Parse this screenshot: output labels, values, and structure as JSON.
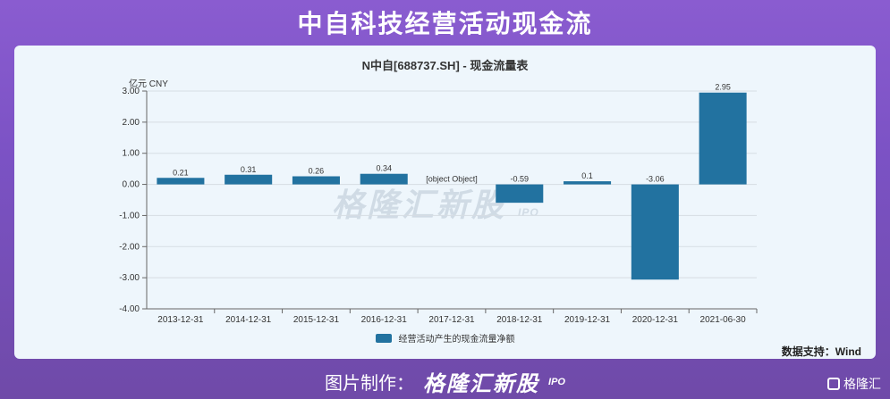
{
  "header": {
    "title": "中自科技经营活动现金流"
  },
  "chart_data": {
    "type": "bar",
    "title": "N中自[688737.SH] - 现金流量表",
    "unit_label": "亿元  CNY",
    "categories": [
      "2013-12-31",
      "2014-12-31",
      "2015-12-31",
      "2016-12-31",
      "2017-12-31",
      "2018-12-31",
      "2019-12-31",
      "2020-12-31",
      "2021-06-30"
    ],
    "series": [
      {
        "name": "经营活动产生的现金流量净额",
        "values": [
          0.21,
          0.31,
          0.26,
          0.34,
          null,
          -0.59,
          0.1,
          -3.06,
          2.95
        ]
      }
    ],
    "data_labels": [
      "0.21",
      "0.31",
      "0.26",
      "0.34",
      "[object Object]",
      "-0.59",
      "0.1",
      "-3.06",
      "2.95"
    ],
    "ylim": [
      -4,
      3
    ],
    "yticks": [
      "3.00",
      "2.00",
      "1.00",
      "0.00",
      "-1.00",
      "-2.00",
      "-3.00",
      "-4.00"
    ],
    "grid": true,
    "legend_position": "bottom",
    "bar_color": "#2272a0"
  },
  "source_note": "数据支持：Wind",
  "watermark": {
    "brand": "格隆汇新股",
    "sub": "IPO"
  },
  "footer": {
    "label": "图片制作：",
    "brand": "格隆汇新股",
    "sub": "IPO"
  },
  "corner_logo": {
    "text": "格隆汇"
  }
}
